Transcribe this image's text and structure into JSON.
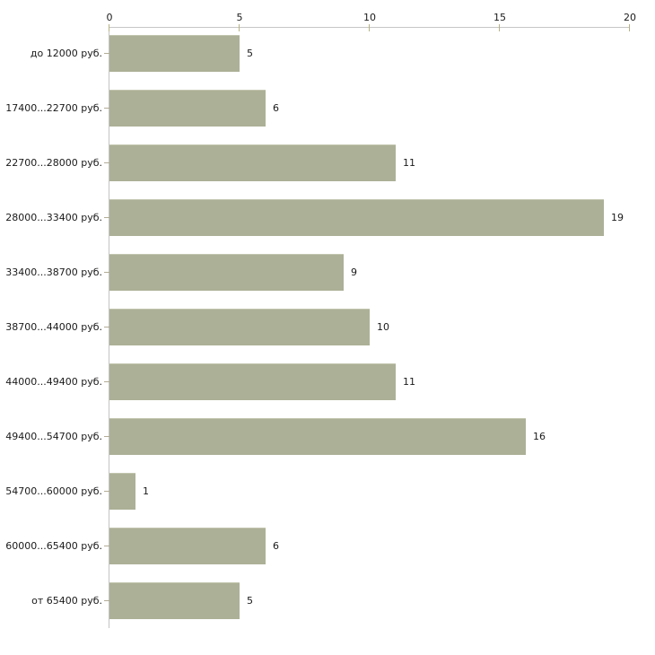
{
  "chart_data": {
    "type": "bar",
    "orientation": "horizontal",
    "title": "",
    "xlabel": "",
    "ylabel": "",
    "categories": [
      "до 12000 руб.",
      "17400...22700 руб.",
      "22700...28000 руб.",
      "28000...33400 руб.",
      "33400...38700 руб.",
      "38700...44000 руб.",
      "44000...49400 руб.",
      "49400...54700 руб.",
      "54700...60000 руб.",
      "60000...65400 руб.",
      "от 65400 руб."
    ],
    "values": [
      5,
      6,
      11,
      19,
      9,
      10,
      11,
      16,
      1,
      6,
      5
    ],
    "xlim": [
      0,
      20
    ],
    "x_ticks": [
      0,
      5,
      10,
      15,
      20
    ],
    "x_axis_position": "top",
    "grid": false,
    "legend": "none",
    "value_labels_shown": true,
    "colors": {
      "bar_fill": "#acb096",
      "bar_top_edge": "#c2c5ad",
      "axis_line": "#c6c6c6",
      "x_tick_mark": "#b5b384",
      "y_tick_mark": "#b2ab97",
      "text": "#1a1a1a",
      "background": "#ffffff"
    }
  }
}
